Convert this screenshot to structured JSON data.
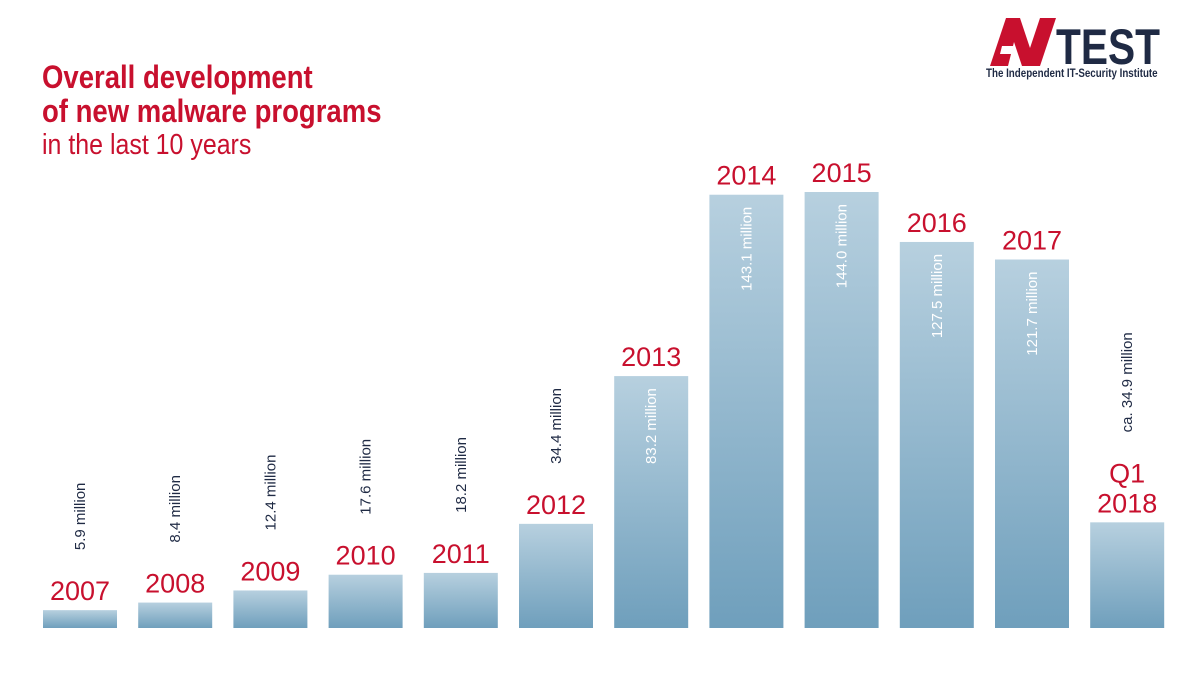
{
  "header": {
    "title_line1": "Overall development",
    "title_line2": "of new malware programs",
    "subtitle": "in the last 10 years"
  },
  "logo": {
    "tagline": "The Independent IT-Security Institute",
    "colors": {
      "red": "#c8102e",
      "navy": "#1f2a44"
    }
  },
  "colors": {
    "accent": "#c8102e",
    "value_text": "#ffffff",
    "value_text_outside": "#1f2a44",
    "bar_top": "#b7d0df",
    "bar_bottom": "#6f9fbc"
  },
  "chart_data": {
    "type": "bar",
    "categories": [
      "2007",
      "2008",
      "2009",
      "2010",
      "2011",
      "2012",
      "2013",
      "2014",
      "2015",
      "2016",
      "2017",
      "Q1 2018"
    ],
    "category_labels": [
      [
        "2007"
      ],
      [
        "2008"
      ],
      [
        "2009"
      ],
      [
        "2010"
      ],
      [
        "2011"
      ],
      [
        "2012"
      ],
      [
        "2013"
      ],
      [
        "2014"
      ],
      [
        "2015"
      ],
      [
        "2016"
      ],
      [
        "2017"
      ],
      [
        "Q1",
        "2018"
      ]
    ],
    "values": [
      5.9,
      8.4,
      12.4,
      17.6,
      18.2,
      34.4,
      83.2,
      143.1,
      144.0,
      127.5,
      121.7,
      34.9
    ],
    "value_labels": [
      "5.9 million",
      "8.4 million",
      "12.4 million",
      "17.6 million",
      "18.2 million",
      "34.4 million",
      "83.2 million",
      "143.1 million",
      "144.0 million",
      "127.5 million",
      "121.7 million",
      "ca. 34.9 million"
    ],
    "label_inside": [
      false,
      false,
      false,
      false,
      false,
      false,
      true,
      true,
      true,
      true,
      true,
      false
    ],
    "unit": "million",
    "ylim": [
      0,
      144.0
    ],
    "grid": false,
    "legend": "none"
  }
}
